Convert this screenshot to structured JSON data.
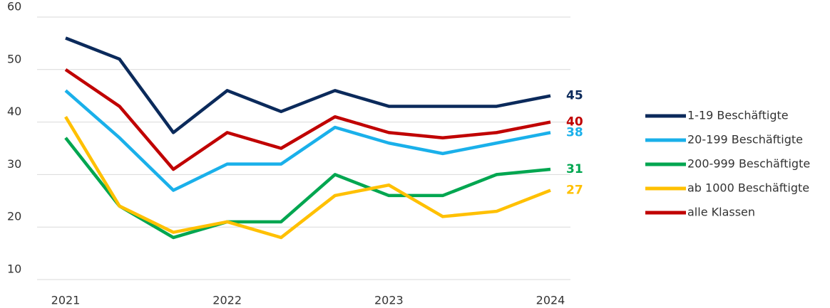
{
  "chart_data": {
    "type": "line",
    "categories": [
      "2021",
      null,
      null,
      "2022",
      null,
      null,
      "2023",
      null,
      null,
      "2024"
    ],
    "series": [
      {
        "name": "1-19 Beschäftigte",
        "color": "#0b2a5b",
        "values": [
          56,
          52,
          38,
          46,
          42,
          46,
          43,
          43,
          43,
          45
        ]
      },
      {
        "name": "20-199 Beschäftigte",
        "color": "#1ab0ea",
        "values": [
          46,
          37,
          27,
          32,
          32,
          39,
          36,
          34,
          36,
          38
        ]
      },
      {
        "name": "200-999 Beschäftigte",
        "color": "#00a650",
        "values": [
          37,
          24,
          18,
          21,
          21,
          30,
          26,
          26,
          30,
          31
        ]
      },
      {
        "name": "ab 1000 Beschäftigte",
        "color": "#ffc000",
        "values": [
          41,
          24,
          19,
          21,
          18,
          26,
          28,
          22,
          23,
          27
        ]
      },
      {
        "name": "alle Klassen",
        "color": "#c00000",
        "values": [
          50,
          43,
          31,
          38,
          35,
          41,
          38,
          37,
          38,
          40
        ]
      }
    ],
    "ylim": [
      10,
      60
    ],
    "yticks": [
      10,
      20,
      30,
      40,
      50,
      60
    ],
    "grid": true,
    "legend": "right"
  }
}
